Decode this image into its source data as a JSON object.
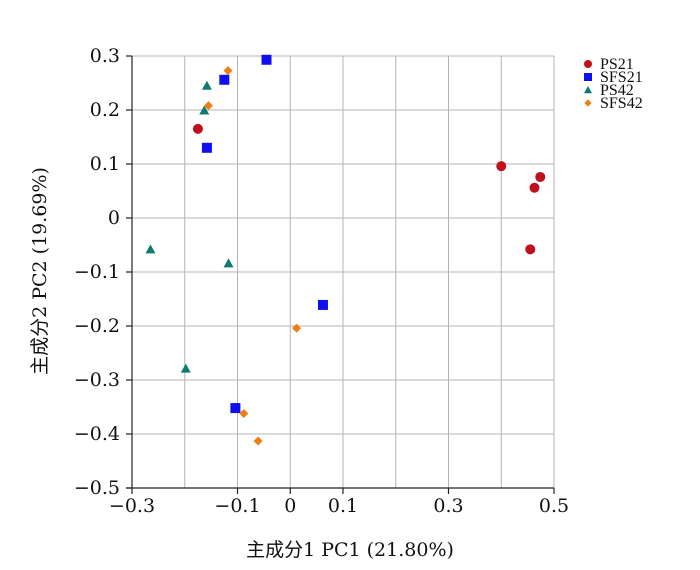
{
  "chart_data": {
    "type": "scatter",
    "title": "",
    "xlabel": "主成分1 PC1 (21.80%)",
    "ylabel": "主成分2 PC2 (19.69%)",
    "xlim": [
      -0.3,
      0.5
    ],
    "ylim": [
      -0.5,
      0.3
    ],
    "grid": true,
    "legend_position": "top-right",
    "x_ticks": [
      {
        "value": -0.3,
        "label": "−0.3"
      },
      {
        "value": -0.1,
        "label": "−0.1"
      },
      {
        "value": 0,
        "label": "0"
      },
      {
        "value": 0.1,
        "label": "0.1"
      },
      {
        "value": 0.3,
        "label": "0.3"
      },
      {
        "value": 0.5,
        "label": "0.5"
      }
    ],
    "x_gridlines": [
      -0.3,
      -0.2,
      -0.1,
      0,
      0.1,
      0.2,
      0.3,
      0.4,
      0.5
    ],
    "y_ticks": [
      {
        "value": 0.3,
        "label": "0.3"
      },
      {
        "value": 0.2,
        "label": "0.2"
      },
      {
        "value": 0.1,
        "label": "0.1"
      },
      {
        "value": 0,
        "label": "0"
      },
      {
        "value": -0.1,
        "label": "−0.1"
      },
      {
        "value": -0.2,
        "label": "−0.2"
      },
      {
        "value": -0.3,
        "label": "−0.3"
      },
      {
        "value": -0.4,
        "label": "−0.4"
      },
      {
        "value": -0.5,
        "label": "−0.5"
      }
    ],
    "series": [
      {
        "name": "PS21",
        "marker": "circle",
        "color": "#c0101c",
        "points": [
          {
            "x": -0.175,
            "y": 0.165
          },
          {
            "x": 0.4,
            "y": 0.096
          },
          {
            "x": 0.474,
            "y": 0.076
          },
          {
            "x": 0.463,
            "y": 0.056
          },
          {
            "x": 0.455,
            "y": -0.058
          }
        ]
      },
      {
        "name": "SFS21",
        "marker": "square",
        "color": "#1010ee",
        "points": [
          {
            "x": -0.045,
            "y": 0.293
          },
          {
            "x": -0.125,
            "y": 0.256
          },
          {
            "x": -0.158,
            "y": 0.13
          },
          {
            "x": 0.062,
            "y": -0.161
          },
          {
            "x": -0.104,
            "y": -0.352
          }
        ]
      },
      {
        "name": "PS42",
        "marker": "triangle",
        "color": "#0e7a70",
        "points": [
          {
            "x": -0.158,
            "y": 0.245
          },
          {
            "x": -0.163,
            "y": 0.199
          },
          {
            "x": -0.265,
            "y": -0.058
          },
          {
            "x": -0.117,
            "y": -0.084
          },
          {
            "x": -0.198,
            "y": -0.279
          }
        ]
      },
      {
        "name": "SFS42",
        "marker": "diamond",
        "color": "#f07d10",
        "points": [
          {
            "x": -0.118,
            "y": 0.273
          },
          {
            "x": -0.155,
            "y": 0.208
          },
          {
            "x": 0.012,
            "y": -0.204
          },
          {
            "x": -0.088,
            "y": -0.362
          },
          {
            "x": -0.061,
            "y": -0.413
          }
        ]
      }
    ]
  }
}
